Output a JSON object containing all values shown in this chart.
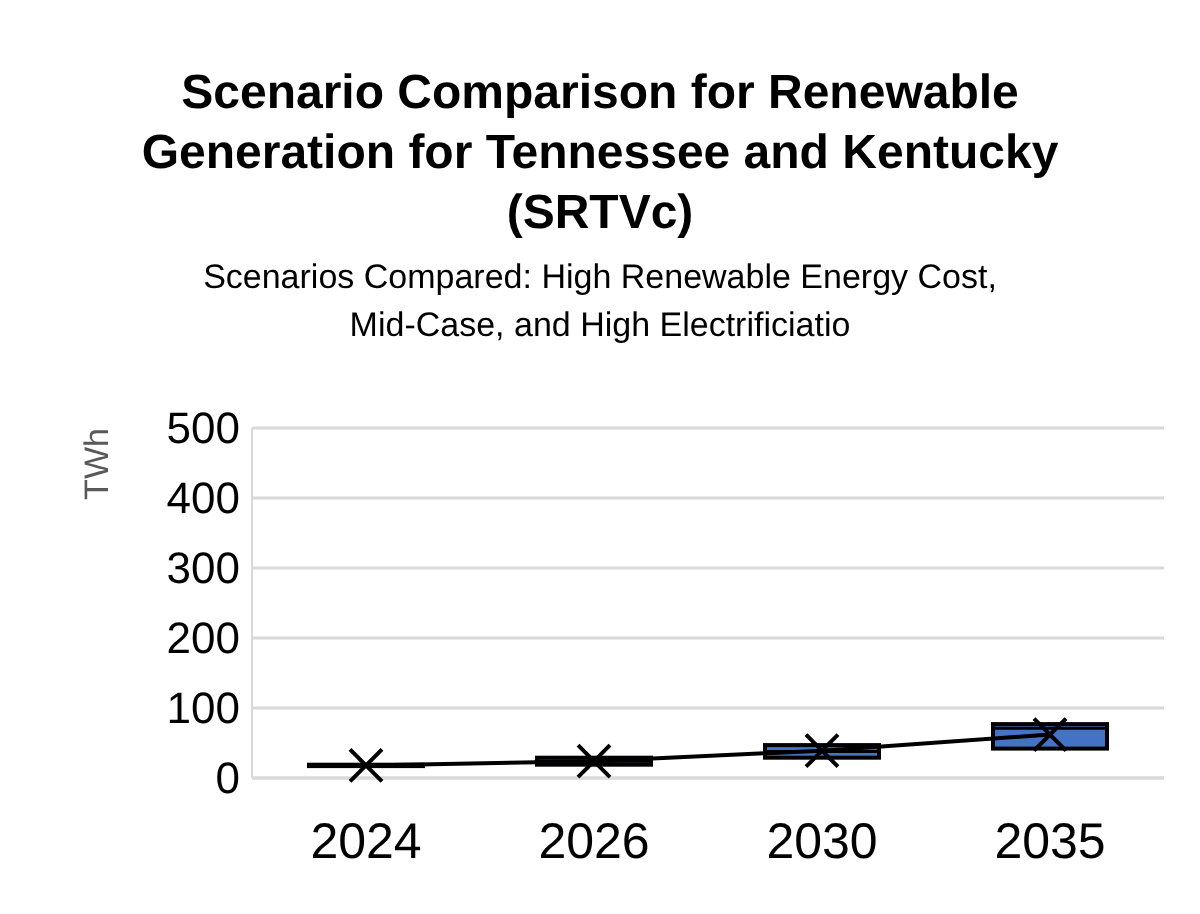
{
  "chart_data": {
    "type": "box",
    "title": "Scenario Comparison for Renewable Generation for Tennessee and Kentucky (SRTVc)",
    "subtitle": "Scenarios Compared: High Renewable Energy Cost, Mid-Case, and High Electrificiatio",
    "ylabel": "TWh",
    "categories": [
      "2024",
      "2026",
      "2030",
      "2035"
    ],
    "series": [
      {
        "color": "#4472c4",
        "boxes": [
          {
            "low": 17,
            "q1": 17,
            "median": 18,
            "q3": 19,
            "high": 19
          },
          {
            "low": 19,
            "q1": 19,
            "median": 24,
            "q3": 29,
            "high": 29
          },
          {
            "low": 29,
            "q1": 29,
            "median": 38,
            "q3": 47,
            "high": 47
          },
          {
            "low": 42,
            "q1": 42,
            "median": 71,
            "q3": 77,
            "high": 77
          }
        ]
      },
      {
        "type": "line",
        "color": "#000000",
        "marker": "cross",
        "values": [
          18,
          24,
          39,
          62
        ]
      }
    ],
    "ylim": [
      0,
      500
    ],
    "yticks": [
      0,
      100,
      200,
      300,
      400,
      500
    ],
    "grid": "y"
  }
}
